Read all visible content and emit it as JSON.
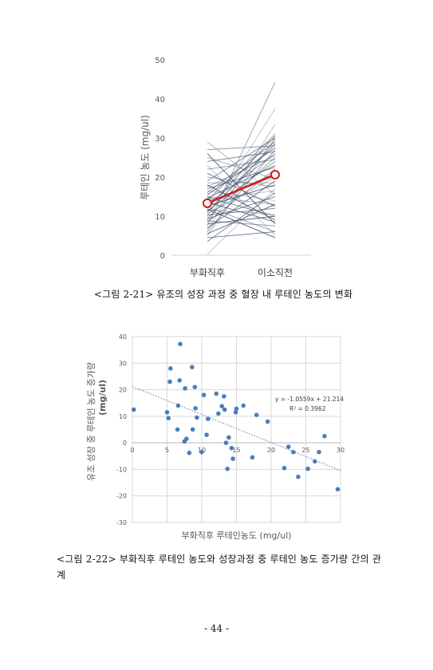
{
  "figure1": {
    "caption": "<그림 2-21> 유조의 성장 과정 중 혈장 내 루테인 농도의 변화",
    "chart_data": {
      "type": "line",
      "categories": [
        "부화직후",
        "이소직전"
      ],
      "ylabel": "루테인 농도 (mg/ul)",
      "ylim": [
        0,
        50
      ],
      "yticks": [
        0,
        10,
        20,
        30,
        40,
        50
      ],
      "mean": [
        13.3,
        20.6
      ],
      "mean_color": "#cc1f1f",
      "line_color": "#44546a",
      "individuals": [
        [
          0.3,
          17.0
        ],
        [
          3.5,
          16.0
        ],
        [
          5.0,
          30.0
        ],
        [
          5.5,
          13.0
        ],
        [
          6.0,
          27.0
        ],
        [
          6.5,
          33.5
        ],
        [
          7.0,
          19.0
        ],
        [
          7.5,
          44.3
        ],
        [
          8.0,
          10.0
        ],
        [
          8.5,
          22.0
        ],
        [
          9.0,
          29.5
        ],
        [
          9.3,
          15.0
        ],
        [
          9.6,
          25.0
        ],
        [
          10.0,
          37.5
        ],
        [
          10.3,
          12.0
        ],
        [
          10.6,
          20.0
        ],
        [
          11.0,
          28.5
        ],
        [
          11.3,
          24.0
        ],
        [
          11.6,
          10.5
        ],
        [
          12.0,
          30.5
        ],
        [
          12.3,
          6.0
        ],
        [
          12.6,
          18.0
        ],
        [
          13.0,
          26.0
        ],
        [
          13.3,
          21.0
        ],
        [
          13.6,
          8.5
        ],
        [
          14.0,
          31.0
        ],
        [
          14.3,
          16.5
        ],
        [
          14.6,
          23.0
        ],
        [
          15.0,
          13.0
        ],
        [
          15.4,
          27.5
        ],
        [
          16.0,
          29.0
        ],
        [
          16.5,
          14.0
        ],
        [
          17.0,
          22.5
        ],
        [
          17.5,
          25.5
        ],
        [
          18.0,
          9.0
        ],
        [
          19.0,
          30.0
        ],
        [
          20.0,
          17.5
        ],
        [
          21.0,
          12.5
        ],
        [
          22.0,
          24.5
        ],
        [
          23.0,
          5.0
        ],
        [
          24.0,
          26.5
        ],
        [
          25.0,
          19.5
        ],
        [
          26.0,
          8.0
        ],
        [
          27.0,
          28.0
        ],
        [
          29.0,
          15.5
        ],
        [
          4.5,
          6.0
        ],
        [
          8.8,
          7.5
        ],
        [
          11.8,
          4.5
        ],
        [
          14.8,
          10.0
        ],
        [
          18.5,
          18.5
        ]
      ]
    }
  },
  "figure2": {
    "caption": "<그림 2-22> 부화직후 루테인 농도와 성장과정 중 루테인 농도 증가량 간의 관계",
    "chart_data": {
      "type": "scatter",
      "xlabel": "부화직후 루테인농도 (mg/ul)",
      "ylabel": "유조 성장 중 루테인 농도 증가량 (mg/ul)",
      "xlim": [
        0,
        30
      ],
      "ylim": [
        -30,
        40
      ],
      "xticks": [
        0,
        5,
        10,
        15,
        20,
        25,
        30
      ],
      "yticks": [
        -30,
        -20,
        -10,
        0,
        10,
        20,
        30,
        40
      ],
      "equation": "y = -1.0559x + 21.214",
      "r_squared": "R² = 0.3962",
      "trend": {
        "slope": -1.0559,
        "intercept": 21.214
      },
      "point_color": "#4a7ebb",
      "points": [
        [
          0.2,
          12.5
        ],
        [
          5.0,
          11.5
        ],
        [
          5.2,
          9.3
        ],
        [
          5.4,
          23.0
        ],
        [
          5.5,
          28.0
        ],
        [
          6.5,
          5.0
        ],
        [
          6.6,
          14.0
        ],
        [
          6.8,
          23.5
        ],
        [
          6.9,
          37.2
        ],
        [
          7.5,
          0.5
        ],
        [
          7.6,
          20.5
        ],
        [
          7.8,
          1.5
        ],
        [
          8.2,
          -3.8
        ],
        [
          8.6,
          28.5
        ],
        [
          8.7,
          5.0
        ],
        [
          9.0,
          21.0
        ],
        [
          9.1,
          13.0
        ],
        [
          9.3,
          9.5
        ],
        [
          10.0,
          -3.5
        ],
        [
          10.3,
          18.0
        ],
        [
          10.7,
          3.0
        ],
        [
          10.9,
          9.0
        ],
        [
          12.1,
          18.5
        ],
        [
          12.4,
          11.0
        ],
        [
          12.9,
          13.8
        ],
        [
          13.2,
          17.5
        ],
        [
          13.3,
          12.5
        ],
        [
          13.5,
          0.0
        ],
        [
          13.7,
          -9.8
        ],
        [
          13.9,
          2.0
        ],
        [
          14.3,
          -2.0
        ],
        [
          14.5,
          -6.0
        ],
        [
          14.9,
          11.5
        ],
        [
          15.0,
          12.8
        ],
        [
          16.0,
          14.0
        ],
        [
          17.3,
          -5.5
        ],
        [
          17.9,
          10.5
        ],
        [
          19.5,
          8.0
        ],
        [
          21.9,
          -9.5
        ],
        [
          22.5,
          -1.5
        ],
        [
          23.2,
          -3.5
        ],
        [
          23.9,
          -12.8
        ],
        [
          25.3,
          -9.8
        ],
        [
          26.3,
          -7.0
        ],
        [
          26.9,
          -3.5
        ],
        [
          27.7,
          2.5
        ],
        [
          29.6,
          -17.5
        ]
      ]
    }
  },
  "page_number": "- 44 -"
}
